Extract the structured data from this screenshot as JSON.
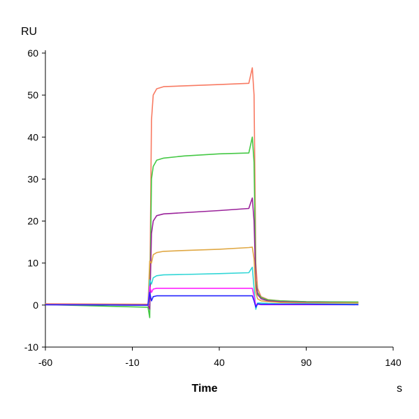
{
  "chart_data": {
    "type": "line",
    "title": "",
    "xlabel": "Time",
    "xunit": "s",
    "ylabel": "RU",
    "xlim": [
      -60,
      140
    ],
    "ylim": [
      -10,
      60
    ],
    "xticks": [
      -60,
      -10,
      40,
      90,
      140
    ],
    "yticks": [
      -10,
      0,
      10,
      20,
      30,
      40,
      50,
      60
    ],
    "grid": false,
    "x": [
      -60,
      -1,
      0,
      1,
      2,
      4,
      8,
      20,
      40,
      57,
      59,
      60,
      61,
      62,
      64,
      68,
      75,
      90,
      120
    ],
    "series": [
      {
        "color": "#F87A62",
        "values": [
          0.3,
          0.2,
          0,
          44,
          50,
          51.5,
          52,
          52.2,
          52.5,
          52.8,
          56.5,
          50,
          10,
          4,
          2,
          1.3,
          1,
          0.8,
          0.7
        ]
      },
      {
        "color": "#44C844",
        "values": [
          0.1,
          -0.5,
          -3,
          30,
          33,
          34.5,
          35,
          35.5,
          36,
          36.2,
          40,
          34,
          6,
          3,
          1.8,
          1.2,
          1,
          0.8,
          0.7
        ]
      },
      {
        "color": "#9A229A",
        "values": [
          0.1,
          0,
          -1,
          17,
          20,
          21.3,
          21.7,
          22,
          22.5,
          23,
          25.5,
          20,
          5,
          2.5,
          1.5,
          1,
          0.8,
          0.6,
          0.5
        ]
      },
      {
        "color": "#E0A844",
        "values": [
          0.1,
          0,
          10.5,
          10,
          12,
          12.5,
          12.8,
          13,
          13.3,
          13.7,
          13.8,
          11,
          3,
          1.5,
          1,
          0.8,
          0.6,
          0.5,
          0.5
        ]
      },
      {
        "color": "#30D6D6",
        "values": [
          0.1,
          0,
          6,
          5,
          6.5,
          7,
          7.2,
          7.3,
          7.5,
          7.7,
          9,
          4,
          -1,
          0.5,
          0.5,
          0.4,
          0.3,
          0.3,
          0.2
        ]
      },
      {
        "color": "#FF22FF",
        "values": [
          0.1,
          0,
          4.5,
          3,
          3.8,
          4,
          4,
          4,
          4,
          4,
          4,
          2,
          0,
          0.2,
          0.1,
          0.1,
          0.1,
          0.1,
          0.1
        ]
      },
      {
        "color": "#2424FF",
        "values": [
          0.1,
          0,
          3,
          1,
          2,
          2.2,
          2.2,
          2.2,
          2.2,
          2.2,
          2.2,
          1,
          -0.5,
          0.3,
          0.2,
          0.2,
          0.2,
          0.2,
          0.1
        ]
      }
    ]
  }
}
